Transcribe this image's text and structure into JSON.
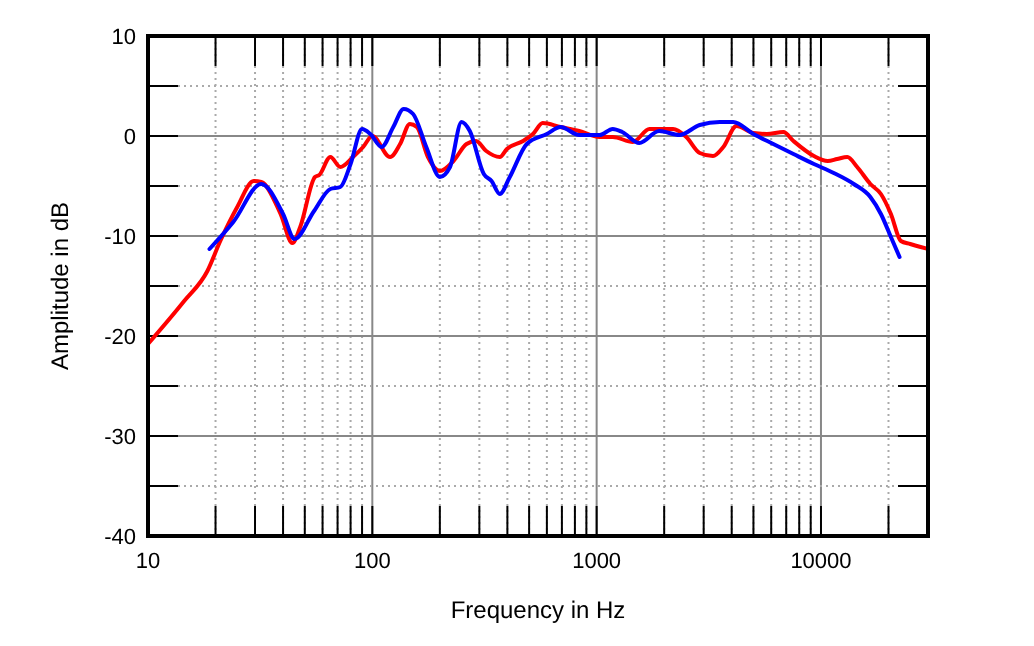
{
  "chart_data": {
    "type": "line",
    "xlabel": "Frequency in Hz",
    "ylabel": "Amplitude in dB",
    "log": "x",
    "grid": true,
    "line_style": "solid",
    "xlim": [
      10,
      30000
    ],
    "ylim": [
      -40,
      10
    ],
    "xticks": [
      10,
      {
        "value": 20,
        "label": null
      },
      {
        "value": 30,
        "label": null
      },
      {
        "value": 40,
        "label": null
      },
      {
        "value": 50,
        "label": null
      },
      {
        "value": 60,
        "label": null
      },
      {
        "value": 70,
        "label": null
      },
      {
        "value": 80,
        "label": null
      },
      {
        "value": 90,
        "label": null
      },
      100,
      {
        "value": 200,
        "label": null
      },
      {
        "value": 300,
        "label": null
      },
      {
        "value": 400,
        "label": null
      },
      {
        "value": 500,
        "label": null
      },
      {
        "value": 600,
        "label": null
      },
      {
        "value": 700,
        "label": null
      },
      {
        "value": 800,
        "label": null
      },
      {
        "value": 900,
        "label": null
      },
      1000,
      {
        "value": 2000,
        "label": null
      },
      {
        "value": 3000,
        "label": null
      },
      {
        "value": 4000,
        "label": null
      },
      {
        "value": 5000,
        "label": null
      },
      {
        "value": 6000,
        "label": null
      },
      {
        "value": 7000,
        "label": null
      },
      {
        "value": 8000,
        "label": null
      },
      {
        "value": 9000,
        "label": null
      },
      10000,
      {
        "value": 20000,
        "label": null
      }
    ],
    "yticks": [
      -40,
      {
        "value": -35,
        "label": null
      },
      -30,
      {
        "value": -25,
        "label": null
      },
      -20,
      {
        "value": -15,
        "label": null
      },
      -10,
      {
        "value": -5,
        "label": null
      },
      0,
      {
        "value": 5,
        "label": null
      },
      10
    ],
    "series": [
      {
        "color": "#ff0000",
        "x": [
          10,
          14.5,
          18.4,
          21,
          25,
          29.6,
          32,
          39,
          44,
          47.7,
          55.5,
          58,
          65,
          72,
          82,
          91,
          100,
          120,
          133,
          147,
          158,
          177,
          200,
          230,
          263,
          290,
          322,
          370,
          398,
          470,
          520,
          575,
          690,
          836,
          1030,
          1180,
          1450,
          1720,
          2190,
          2510,
          2880,
          3300,
          3670,
          4200,
          5000,
          5740,
          6800,
          7540,
          9300,
          10720,
          11800,
          13100,
          14500,
          16600,
          18500,
          20500,
          22700,
          25000,
          27800,
          30000
        ],
        "values": [
          -20.8,
          -16.5,
          -13.5,
          -10.5,
          -7.1,
          -4.5,
          -4.6,
          -7.8,
          -10.7,
          -9.1,
          -4.1,
          -3.9,
          -2.1,
          -3.1,
          -2.1,
          -1.1,
          0,
          -2.1,
          -0.8,
          1.2,
          0.9,
          -2.1,
          -3.5,
          -2.5,
          -0.8,
          -0.5,
          -1.5,
          -2.1,
          -1.3,
          -0.5,
          0.2,
          1.3,
          0.9,
          0.5,
          -0.1,
          -0.1,
          -0.6,
          0.7,
          0.7,
          -0.1,
          -1.7,
          -2.0,
          -1.1,
          1.0,
          0.3,
          0.2,
          0.4,
          -0.5,
          -2.0,
          -2.5,
          -2.3,
          -2.1,
          -3.1,
          -4.8,
          -5.8,
          -7.8,
          -10.5,
          -10.8,
          -11.1,
          -11.3
        ]
      },
      {
        "color": "#0000ff",
        "x": [
          18.8,
          24,
          32,
          40,
          45,
          55,
          65,
          72,
          80,
          90,
          98,
          110,
          124,
          138,
          152,
          174,
          200,
          222,
          250,
          272,
          314,
          340,
          370,
          410,
          488,
          600,
          690,
          836,
          1030,
          1180,
          1300,
          1550,
          1900,
          2340,
          2880,
          3540,
          4060,
          5000,
          6130,
          7540,
          9300,
          11400,
          14000,
          16600,
          18500,
          20500,
          22400
        ],
        "values": [
          -11.3,
          -8.6,
          -4.8,
          -7.8,
          -10.3,
          -7.5,
          -5.3,
          -5.1,
          -2.8,
          0.7,
          0.2,
          -1.1,
          0.9,
          2.7,
          2.2,
          -1.1,
          -4.1,
          -3.1,
          1.4,
          0.5,
          -3.8,
          -4.5,
          -5.8,
          -4.1,
          -0.8,
          0.2,
          0.9,
          0.1,
          0.1,
          0.7,
          0.4,
          -0.7,
          0.5,
          0.1,
          1.1,
          1.4,
          1.4,
          0.2,
          -0.8,
          -1.8,
          -2.8,
          -3.7,
          -4.8,
          -6.1,
          -7.8,
          -10.1,
          -12.1
        ]
      }
    ]
  }
}
